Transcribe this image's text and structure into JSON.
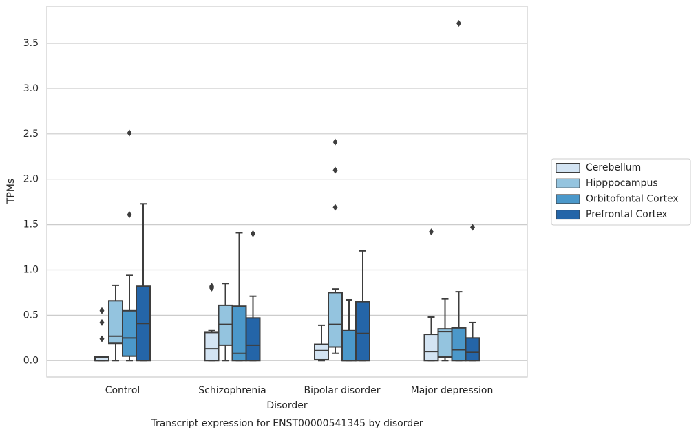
{
  "chart_data": {
    "type": "box",
    "title": "Transcript expression for ENST00000541345 by disorder",
    "x_label": "Disorder",
    "y_label": "TPMs",
    "categories": [
      "Control",
      "Schizophrenia",
      "Bipolar disorder",
      "Major depression"
    ],
    "ylim": [
      -0.18,
      3.91
    ],
    "yticks": [
      {
        "value": 0,
        "label": "0.0"
      },
      0.5,
      {
        "value": 1,
        "label": "1.0"
      },
      1.5,
      {
        "value": 2,
        "label": "2.0"
      },
      2.5,
      {
        "value": 3,
        "label": "3.0"
      },
      3.5
    ],
    "grid": true,
    "legend": "right",
    "series": [
      {
        "name": "Cerebellum",
        "color": "#d3e4f3",
        "values": [
          {
            "min": 0,
            "q1": 0,
            "median": 0,
            "q3": 0.04,
            "max": 0.04,
            "outliers": [
              0.55,
              0.42,
              0.24
            ]
          },
          {
            "min": 0,
            "q1": 0,
            "median": 0.13,
            "q3": 0.31,
            "max": 0.33,
            "outliers": [
              0.8,
              0.82
            ]
          },
          {
            "min": 0,
            "q1": 0.01,
            "median": 0.11,
            "q3": 0.18,
            "max": 0.39,
            "outliers": []
          },
          {
            "min": 0,
            "q1": 0,
            "median": 0.1,
            "q3": 0.29,
            "max": 0.48,
            "outliers": [
              1.42
            ]
          }
        ]
      },
      {
        "name": "Hipppocampus",
        "color": "#94c4df",
        "values": [
          {
            "min": 0,
            "q1": 0.19,
            "median": 0.27,
            "q3": 0.66,
            "max": 0.83,
            "outliers": []
          },
          {
            "min": 0,
            "q1": 0.17,
            "median": 0.4,
            "q3": 0.61,
            "max": 0.85,
            "outliers": []
          },
          {
            "min": 0.08,
            "q1": 0.15,
            "median": 0.4,
            "q3": 0.75,
            "max": 0.79,
            "outliers": [
              2.41,
              2.1,
              1.69
            ]
          },
          {
            "min": 0,
            "q1": 0.04,
            "median": 0.32,
            "q3": 0.35,
            "max": 0.68,
            "outliers": []
          }
        ]
      },
      {
        "name": "Orbitofontal Cortex",
        "color": "#4b98ca",
        "values": [
          {
            "min": 0,
            "q1": 0.05,
            "median": 0.25,
            "q3": 0.55,
            "max": 0.94,
            "outliers": [
              2.51,
              1.61
            ]
          },
          {
            "min": 0,
            "q1": 0,
            "median": 0.08,
            "q3": 0.6,
            "max": 1.41,
            "outliers": []
          },
          {
            "min": 0,
            "q1": 0,
            "median": 0,
            "q3": 0.33,
            "max": 0.67,
            "outliers": []
          },
          {
            "min": 0,
            "q1": 0,
            "median": 0.12,
            "q3": 0.36,
            "max": 0.76,
            "outliers": [
              3.72
            ]
          }
        ]
      },
      {
        "name": "Prefrontal Cortex",
        "color": "#2465a8",
        "values": [
          {
            "min": 0,
            "q1": 0,
            "median": 0.41,
            "q3": 0.82,
            "max": 1.73,
            "outliers": []
          },
          {
            "min": 0,
            "q1": 0,
            "median": 0.17,
            "q3": 0.47,
            "max": 0.71,
            "outliers": [
              1.4
            ]
          },
          {
            "min": 0,
            "q1": 0,
            "median": 0.3,
            "q3": 0.65,
            "max": 1.21,
            "outliers": []
          },
          {
            "min": 0,
            "q1": 0,
            "median": 0.09,
            "q3": 0.25,
            "max": 0.42,
            "outliers": [
              1.47
            ]
          }
        ]
      }
    ]
  }
}
